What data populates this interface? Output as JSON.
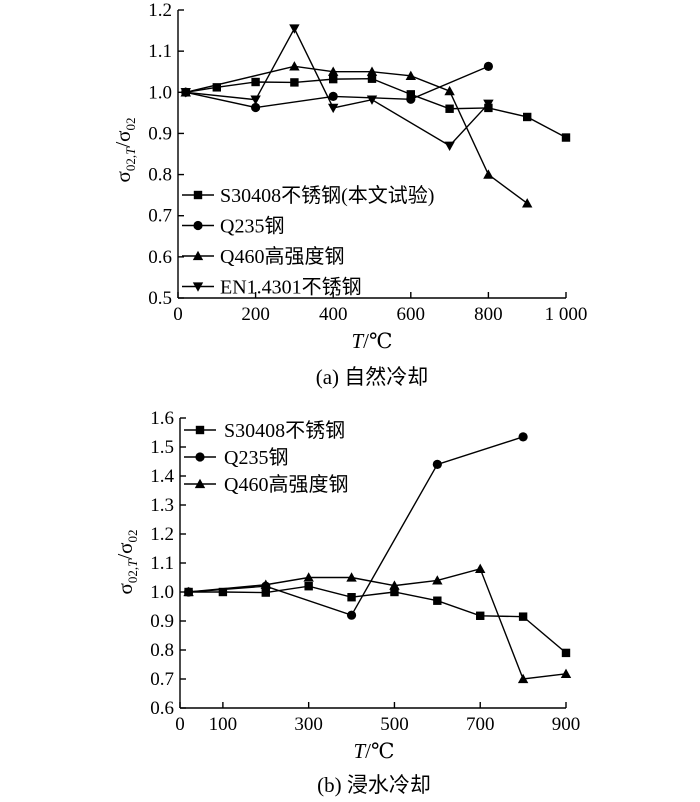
{
  "chart_data": [
    {
      "type": "line",
      "caption": "(a) 自然冷却",
      "xlabel_italic": "T",
      "xlabel_unit": "/℃",
      "ylabel": "σ02,T/σ02",
      "xlim": [
        0,
        1000
      ],
      "ylim": [
        0.5,
        1.2
      ],
      "x_ticks": [
        0,
        200,
        400,
        600,
        800,
        1000
      ],
      "x_tick_labels": [
        "0",
        "200",
        "400",
        "600",
        "800",
        "1 000"
      ],
      "y_ticks": [
        0.5,
        0.6,
        0.7,
        0.8,
        0.9,
        1.0,
        1.1,
        1.2
      ],
      "y_tick_labels": [
        "0.5",
        "0.6",
        "0.7",
        "0.8",
        "0.9",
        "1.0",
        "1.1",
        "1.2"
      ],
      "legend_position": "bottom-left",
      "series": [
        {
          "name": "S30408不锈钢(本文试验)",
          "marker": "square",
          "x": [
            20,
            100,
            200,
            300,
            400,
            500,
            600,
            700,
            800,
            900,
            1000
          ],
          "y": [
            1.0,
            1.012,
            1.025,
            1.024,
            1.032,
            1.033,
            0.995,
            0.96,
            0.962,
            0.94,
            0.89
          ]
        },
        {
          "name": "Q235钢",
          "marker": "circle",
          "x": [
            20,
            200,
            400,
            600,
            800
          ],
          "y": [
            1.0,
            0.963,
            0.99,
            0.983,
            1.063
          ]
        },
        {
          "name": "Q460高强度钢",
          "marker": "triangle-up",
          "x": [
            20,
            300,
            400,
            500,
            600,
            700,
            800,
            900
          ],
          "y": [
            1.0,
            1.063,
            1.05,
            1.05,
            1.04,
            1.003,
            0.8,
            0.73
          ]
        },
        {
          "name": "EN1.4301不锈钢",
          "marker": "triangle-down",
          "x": [
            20,
            200,
            300,
            400,
            500,
            700,
            800
          ],
          "y": [
            1.0,
            0.982,
            1.155,
            0.962,
            0.982,
            0.87,
            0.972
          ]
        }
      ]
    },
    {
      "type": "line",
      "caption": "(b) 浸水冷却",
      "xlabel_italic": "T",
      "xlabel_unit": "/℃",
      "ylabel": "σ02,T/σ02",
      "xlim": [
        0,
        900
      ],
      "ylim": [
        0.6,
        1.6
      ],
      "x_ticks": [
        0,
        100,
        300,
        500,
        700,
        900
      ],
      "x_tick_labels": [
        "0",
        "100",
        "300",
        "500",
        "700",
        "900"
      ],
      "y_ticks": [
        0.6,
        0.7,
        0.8,
        0.9,
        1.0,
        1.1,
        1.2,
        1.3,
        1.4,
        1.5,
        1.6
      ],
      "y_tick_labels": [
        "0.6",
        "0.7",
        "0.8",
        "0.9",
        "1.0",
        "1.1",
        "1.2",
        "1.3",
        "1.4",
        "1.5",
        "1.6"
      ],
      "legend_position": "top-left",
      "series": [
        {
          "name": "S30408不锈钢",
          "marker": "square",
          "x": [
            20,
            100,
            200,
            300,
            400,
            500,
            600,
            700,
            800,
            900
          ],
          "y": [
            1.0,
            1.0,
            0.998,
            1.02,
            0.982,
            1.0,
            0.97,
            0.918,
            0.915,
            0.79
          ]
        },
        {
          "name": "Q235钢",
          "marker": "circle",
          "x": [
            20,
            200,
            400,
            600,
            800
          ],
          "y": [
            1.0,
            1.02,
            0.92,
            1.44,
            1.535
          ]
        },
        {
          "name": "Q460高强度钢",
          "marker": "triangle-up",
          "x": [
            20,
            200,
            300,
            400,
            500,
            600,
            700,
            800,
            900
          ],
          "y": [
            1.0,
            1.025,
            1.05,
            1.05,
            1.022,
            1.04,
            1.08,
            0.7,
            0.718
          ]
        }
      ]
    }
  ]
}
